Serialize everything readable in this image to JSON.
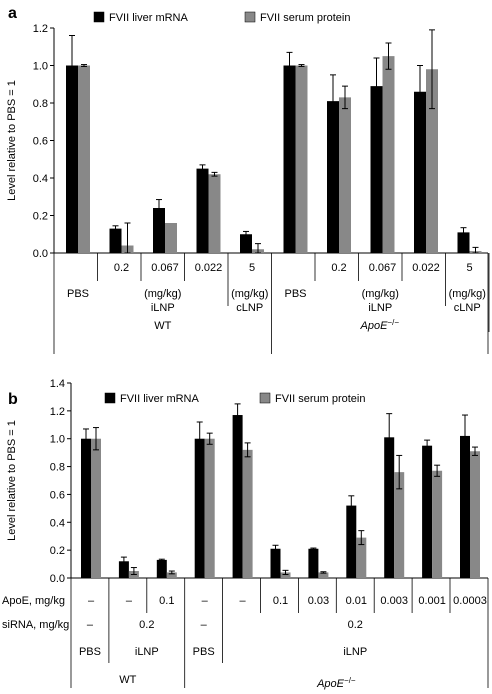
{
  "chart_data": [
    {
      "panel": "a",
      "type": "bar",
      "ylabel": "Level relative to PBS = 1",
      "ylim": [
        0,
        1.2
      ],
      "yticks": [
        "0.0",
        "0.2",
        "0.4",
        "0.6",
        "0.8",
        "1.0",
        "1.2"
      ],
      "legend": [
        "FVII liver mRNA",
        "FVII serum protein"
      ],
      "colors": [
        "#000000",
        "#888888"
      ],
      "categories": [
        "PBS",
        "0.2",
        "0.067",
        "0.022",
        "5",
        "PBS",
        "0.2",
        "0.067",
        "0.022",
        "5"
      ],
      "series": [
        {
          "name": "FVII liver mRNA",
          "values": [
            1.0,
            0.13,
            0.24,
            0.45,
            0.1,
            1.0,
            0.81,
            0.89,
            0.86,
            0.11
          ],
          "errors": [
            0.16,
            0.015,
            0.045,
            0.02,
            0.015,
            0.07,
            0.14,
            0.15,
            0.14,
            0.025
          ]
        },
        {
          "name": "FVII serum protein",
          "values": [
            1.0,
            0.04,
            0.16,
            0.42,
            0.02,
            1.0,
            0.83,
            1.05,
            0.98,
            0.01
          ],
          "errors": [
            0.005,
            0.12,
            0.0,
            0.01,
            0.03,
            0.005,
            0.06,
            0.07,
            0.21,
            0.02
          ]
        }
      ],
      "group_labels": [
        {
          "lines": [
            "(mg/kg)",
            "iLNP"
          ]
        },
        {
          "lines": [
            "(mg/kg)",
            "cLNP"
          ]
        },
        {
          "lines": [
            "(mg/kg)",
            "iLNP"
          ]
        },
        {
          "lines": [
            "(mg/kg)",
            "cLNP"
          ]
        }
      ],
      "genotypes": [
        "WT",
        "ApoE",
        "−/−"
      ]
    },
    {
      "panel": "b",
      "type": "bar",
      "ylabel": "Level relative to PBS = 1",
      "ylim": [
        0,
        1.4
      ],
      "yticks": [
        "0.0",
        "0.2",
        "0.4",
        "0.6",
        "0.8",
        "1.0",
        "1.2",
        "1.4"
      ],
      "legend": [
        "FVII liver mRNA",
        "FVII serum protein"
      ],
      "colors": [
        "#000000",
        "#888888"
      ],
      "row_labels": [
        "ApoE, mg/kg",
        "siRNA, mg/kg"
      ],
      "apoe": [
        "–",
        "–",
        "0.1",
        "–",
        "–",
        "0.1",
        "0.03",
        "0.01",
        "0.003",
        "0.001",
        "0.0003"
      ],
      "sirna": [
        "–",
        "0.2",
        "–",
        "0.2"
      ],
      "formulation": [
        "PBS",
        "iLNP",
        "PBS",
        "iLNP"
      ],
      "series": [
        {
          "name": "FVII liver mRNA",
          "values": [
            1.0,
            0.12,
            0.13,
            1.0,
            1.17,
            0.21,
            0.21,
            0.52,
            1.01,
            0.95,
            1.02
          ],
          "errors": [
            0.07,
            0.03,
            0.005,
            0.12,
            0.08,
            0.025,
            0.005,
            0.07,
            0.17,
            0.04,
            0.15
          ]
        },
        {
          "name": "FVII serum protein",
          "values": [
            1.0,
            0.05,
            0.04,
            1.0,
            0.92,
            0.04,
            0.04,
            0.29,
            0.76,
            0.77,
            0.91
          ],
          "errors": [
            0.08,
            0.025,
            0.01,
            0.04,
            0.05,
            0.015,
            0.005,
            0.05,
            0.12,
            0.04,
            0.03
          ]
        }
      ],
      "genotypes": [
        "WT",
        "ApoE",
        "−/−"
      ]
    }
  ]
}
